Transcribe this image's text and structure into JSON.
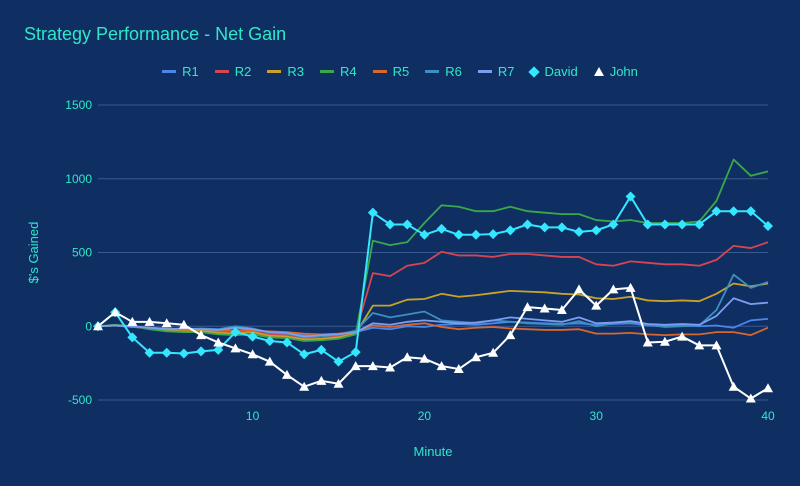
{
  "chart_data": {
    "type": "line",
    "title": "Strategy Performance - Net Gain",
    "xlabel": "Minute",
    "ylabel": "$'s Gained",
    "xlim": [
      1,
      40
    ],
    "ylim": [
      -500,
      1500
    ],
    "x_ticks": [
      10,
      20,
      30,
      40
    ],
    "y_ticks": [
      -500,
      0,
      500,
      1000,
      1500
    ],
    "x": [
      1,
      2,
      3,
      4,
      5,
      6,
      7,
      8,
      9,
      10,
      11,
      12,
      13,
      14,
      15,
      16,
      17,
      18,
      19,
      20,
      21,
      22,
      23,
      24,
      25,
      26,
      27,
      28,
      29,
      30,
      31,
      32,
      33,
      34,
      35,
      36,
      37,
      38,
      39,
      40
    ],
    "series": [
      {
        "name": "R1",
        "color": "#4a86e8",
        "marker": "none",
        "values": [
          0,
          5,
          -5,
          -10,
          -20,
          -25,
          -30,
          -25,
          -30,
          -20,
          -40,
          -45,
          -60,
          -70,
          -60,
          -40,
          -10,
          -20,
          0,
          -5,
          10,
          15,
          10,
          20,
          30,
          25,
          20,
          15,
          20,
          10,
          15,
          20,
          5,
          0,
          5,
          0,
          5,
          -10,
          40,
          50
        ]
      },
      {
        "name": "R2",
        "color": "#d64550",
        "marker": "none",
        "values": [
          0,
          5,
          -5,
          -10,
          -20,
          -30,
          -25,
          -40,
          -45,
          -35,
          -55,
          -60,
          -80,
          -70,
          -65,
          -40,
          360,
          340,
          410,
          430,
          505,
          480,
          480,
          470,
          490,
          490,
          480,
          470,
          470,
          420,
          410,
          440,
          430,
          420,
          420,
          410,
          450,
          545,
          530,
          570
        ]
      },
      {
        "name": "R3",
        "color": "#c9a227",
        "marker": "none",
        "values": [
          0,
          5,
          0,
          -15,
          -25,
          -35,
          -30,
          -45,
          -50,
          -40,
          -65,
          -70,
          -90,
          -85,
          -75,
          -50,
          140,
          140,
          180,
          185,
          220,
          200,
          210,
          225,
          240,
          235,
          230,
          220,
          215,
          190,
          185,
          200,
          175,
          170,
          175,
          170,
          220,
          290,
          270,
          290
        ]
      },
      {
        "name": "R4",
        "color": "#3aa84a",
        "marker": "none",
        "values": [
          0,
          10,
          0,
          -20,
          -35,
          -40,
          -40,
          -55,
          -60,
          -55,
          -75,
          -80,
          -100,
          -95,
          -85,
          -55,
          580,
          550,
          570,
          700,
          820,
          810,
          780,
          780,
          810,
          780,
          770,
          760,
          760,
          720,
          710,
          720,
          700,
          700,
          700,
          710,
          850,
          1130,
          1020,
          1050
        ]
      },
      {
        "name": "R5",
        "color": "#d9662a",
        "marker": "none",
        "values": [
          0,
          5,
          -5,
          -10,
          -15,
          -20,
          -20,
          -30,
          -30,
          -30,
          -35,
          -40,
          -50,
          -55,
          -50,
          -35,
          5,
          -5,
          10,
          20,
          -5,
          -20,
          -10,
          -5,
          -15,
          -20,
          -25,
          -25,
          -20,
          -50,
          -50,
          -45,
          -55,
          -60,
          -55,
          -55,
          -40,
          -40,
          -60,
          -10
        ]
      },
      {
        "name": "R6",
        "color": "#3c8fc0",
        "marker": "none",
        "values": [
          0,
          5,
          -5,
          -10,
          -20,
          -20,
          -15,
          -20,
          0,
          -15,
          -45,
          -50,
          -75,
          -70,
          -55,
          -30,
          90,
          60,
          80,
          100,
          40,
          30,
          20,
          40,
          30,
          20,
          15,
          10,
          35,
          0,
          20,
          30,
          10,
          -5,
          0,
          5,
          110,
          350,
          260,
          300
        ]
      },
      {
        "name": "R7",
        "color": "#7b9ef0",
        "marker": "none",
        "values": [
          0,
          5,
          0,
          -10,
          -20,
          -15,
          -20,
          -25,
          -10,
          -20,
          -40,
          -45,
          -70,
          -60,
          -55,
          -40,
          20,
          10,
          30,
          40,
          30,
          20,
          25,
          40,
          60,
          50,
          40,
          30,
          60,
          20,
          25,
          35,
          15,
          10,
          15,
          10,
          70,
          190,
          150,
          160
        ]
      },
      {
        "name": "David",
        "color": "#35e6ff",
        "marker": "diamond",
        "values": [
          0,
          95,
          -75,
          -180,
          -180,
          -185,
          -170,
          -160,
          -40,
          -70,
          -100,
          -110,
          -190,
          -160,
          -240,
          -175,
          770,
          690,
          690,
          620,
          660,
          620,
          620,
          625,
          650,
          690,
          670,
          670,
          640,
          650,
          690,
          880,
          690,
          690,
          690,
          690,
          780,
          780,
          780,
          680
        ]
      },
      {
        "name": "John",
        "color": "#ffffff",
        "marker": "triangle",
        "values": [
          0,
          95,
          30,
          30,
          20,
          10,
          -60,
          -110,
          -150,
          -190,
          -240,
          -330,
          -410,
          -370,
          -390,
          -270,
          -270,
          -280,
          -210,
          -220,
          -270,
          -290,
          -210,
          -180,
          -60,
          130,
          120,
          110,
          250,
          140,
          250,
          260,
          -110,
          -105,
          -70,
          -130,
          -130,
          -410,
          -490,
          -420
        ]
      }
    ],
    "legend_position": "top",
    "grid": true
  },
  "colors": {
    "background": "#0f2f63",
    "text": "#2ee8c8",
    "grid": "#3a5a8f"
  }
}
